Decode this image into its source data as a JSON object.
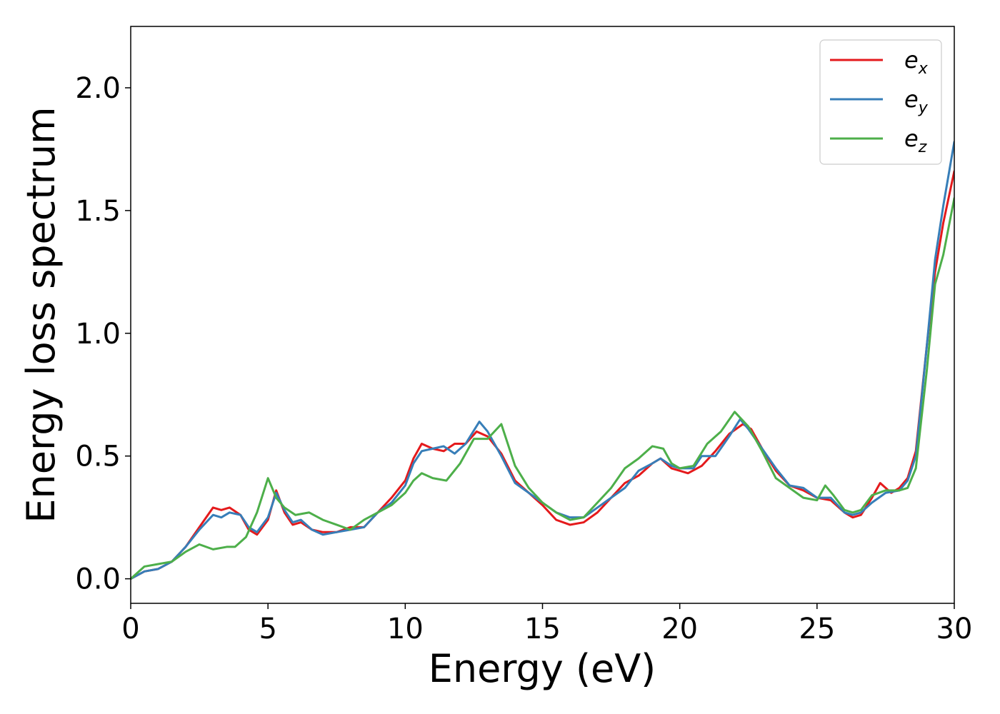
{
  "chart_data": {
    "type": "line",
    "title": "",
    "xlabel": "Energy (eV)",
    "ylabel": "Energy loss spectrum",
    "xlim": [
      0,
      30
    ],
    "ylim": [
      -0.1,
      2.25
    ],
    "x_ticks": [
      0,
      5,
      10,
      15,
      20,
      25,
      30
    ],
    "x_tick_labels": [
      "0",
      "5",
      "10",
      "15",
      "20",
      "25",
      "30"
    ],
    "y_ticks": [
      0.0,
      0.5,
      1.0,
      1.5,
      2.0
    ],
    "y_tick_labels": [
      "0.0",
      "0.5",
      "1.0",
      "1.5",
      "2.0"
    ],
    "grid": false,
    "legend_position": "top-right",
    "series": [
      {
        "name": "e_x",
        "legend_base": "e",
        "legend_sub": "x",
        "color": "#e41a1c",
        "points": [
          [
            0.0,
            0.0
          ],
          [
            0.5,
            0.03
          ],
          [
            1.0,
            0.04
          ],
          [
            1.5,
            0.07
          ],
          [
            2.0,
            0.13
          ],
          [
            2.5,
            0.21
          ],
          [
            3.0,
            0.29
          ],
          [
            3.3,
            0.28
          ],
          [
            3.6,
            0.29
          ],
          [
            4.0,
            0.26
          ],
          [
            4.3,
            0.2
          ],
          [
            4.6,
            0.18
          ],
          [
            5.0,
            0.24
          ],
          [
            5.3,
            0.36
          ],
          [
            5.6,
            0.27
          ],
          [
            5.9,
            0.22
          ],
          [
            6.2,
            0.23
          ],
          [
            6.6,
            0.2
          ],
          [
            7.0,
            0.19
          ],
          [
            7.5,
            0.19
          ],
          [
            8.0,
            0.21
          ],
          [
            8.5,
            0.21
          ],
          [
            9.0,
            0.27
          ],
          [
            9.5,
            0.33
          ],
          [
            10.0,
            0.4
          ],
          [
            10.3,
            0.49
          ],
          [
            10.6,
            0.55
          ],
          [
            11.0,
            0.53
          ],
          [
            11.4,
            0.52
          ],
          [
            11.8,
            0.55
          ],
          [
            12.2,
            0.55
          ],
          [
            12.6,
            0.6
          ],
          [
            13.0,
            0.58
          ],
          [
            13.5,
            0.51
          ],
          [
            14.0,
            0.4
          ],
          [
            14.5,
            0.35
          ],
          [
            15.0,
            0.3
          ],
          [
            15.5,
            0.24
          ],
          [
            16.0,
            0.22
          ],
          [
            16.5,
            0.23
          ],
          [
            17.0,
            0.27
          ],
          [
            17.5,
            0.33
          ],
          [
            18.0,
            0.39
          ],
          [
            18.5,
            0.42
          ],
          [
            19.0,
            0.47
          ],
          [
            19.3,
            0.49
          ],
          [
            19.7,
            0.45
          ],
          [
            20.0,
            0.44
          ],
          [
            20.3,
            0.43
          ],
          [
            20.8,
            0.46
          ],
          [
            21.3,
            0.52
          ],
          [
            21.8,
            0.59
          ],
          [
            22.3,
            0.63
          ],
          [
            22.6,
            0.61
          ],
          [
            23.0,
            0.53
          ],
          [
            23.5,
            0.44
          ],
          [
            24.0,
            0.38
          ],
          [
            24.5,
            0.36
          ],
          [
            25.0,
            0.33
          ],
          [
            25.5,
            0.32
          ],
          [
            26.0,
            0.27
          ],
          [
            26.3,
            0.25
          ],
          [
            26.6,
            0.26
          ],
          [
            27.0,
            0.33
          ],
          [
            27.3,
            0.39
          ],
          [
            27.7,
            0.35
          ],
          [
            28.0,
            0.37
          ],
          [
            28.3,
            0.41
          ],
          [
            28.6,
            0.52
          ],
          [
            29.0,
            0.95
          ],
          [
            29.3,
            1.25
          ],
          [
            29.6,
            1.45
          ],
          [
            30.0,
            1.66
          ]
        ]
      },
      {
        "name": "e_y",
        "legend_base": "e",
        "legend_sub": "y",
        "color": "#377eb8",
        "points": [
          [
            0.0,
            0.0
          ],
          [
            0.5,
            0.03
          ],
          [
            1.0,
            0.04
          ],
          [
            1.5,
            0.07
          ],
          [
            2.0,
            0.13
          ],
          [
            2.5,
            0.2
          ],
          [
            3.0,
            0.26
          ],
          [
            3.3,
            0.25
          ],
          [
            3.6,
            0.27
          ],
          [
            4.0,
            0.26
          ],
          [
            4.3,
            0.21
          ],
          [
            4.6,
            0.19
          ],
          [
            5.0,
            0.25
          ],
          [
            5.3,
            0.35
          ],
          [
            5.6,
            0.28
          ],
          [
            5.9,
            0.23
          ],
          [
            6.2,
            0.24
          ],
          [
            6.6,
            0.2
          ],
          [
            7.0,
            0.18
          ],
          [
            7.5,
            0.19
          ],
          [
            8.0,
            0.2
          ],
          [
            8.5,
            0.21
          ],
          [
            9.0,
            0.27
          ],
          [
            9.5,
            0.31
          ],
          [
            10.0,
            0.38
          ],
          [
            10.3,
            0.47
          ],
          [
            10.6,
            0.52
          ],
          [
            11.0,
            0.53
          ],
          [
            11.4,
            0.54
          ],
          [
            11.8,
            0.51
          ],
          [
            12.2,
            0.55
          ],
          [
            12.7,
            0.64
          ],
          [
            13.0,
            0.6
          ],
          [
            13.5,
            0.5
          ],
          [
            14.0,
            0.39
          ],
          [
            14.5,
            0.35
          ],
          [
            15.0,
            0.31
          ],
          [
            15.5,
            0.27
          ],
          [
            16.0,
            0.25
          ],
          [
            16.5,
            0.25
          ],
          [
            17.0,
            0.29
          ],
          [
            17.5,
            0.33
          ],
          [
            18.0,
            0.37
          ],
          [
            18.5,
            0.44
          ],
          [
            19.0,
            0.47
          ],
          [
            19.3,
            0.49
          ],
          [
            19.7,
            0.46
          ],
          [
            20.0,
            0.45
          ],
          [
            20.5,
            0.45
          ],
          [
            20.8,
            0.5
          ],
          [
            21.3,
            0.5
          ],
          [
            21.8,
            0.58
          ],
          [
            22.2,
            0.65
          ],
          [
            22.5,
            0.61
          ],
          [
            23.0,
            0.53
          ],
          [
            23.5,
            0.45
          ],
          [
            24.0,
            0.38
          ],
          [
            24.5,
            0.37
          ],
          [
            25.0,
            0.33
          ],
          [
            25.5,
            0.33
          ],
          [
            26.0,
            0.27
          ],
          [
            26.3,
            0.26
          ],
          [
            26.6,
            0.27
          ],
          [
            27.0,
            0.31
          ],
          [
            27.5,
            0.35
          ],
          [
            28.0,
            0.36
          ],
          [
            28.3,
            0.4
          ],
          [
            28.6,
            0.5
          ],
          [
            29.0,
            0.95
          ],
          [
            29.3,
            1.3
          ],
          [
            29.6,
            1.52
          ],
          [
            30.0,
            1.78
          ]
        ]
      },
      {
        "name": "e_z",
        "legend_base": "e",
        "legend_sub": "z",
        "color": "#4daf4a",
        "points": [
          [
            0.0,
            0.0
          ],
          [
            0.5,
            0.05
          ],
          [
            1.0,
            0.06
          ],
          [
            1.5,
            0.07
          ],
          [
            2.0,
            0.11
          ],
          [
            2.5,
            0.14
          ],
          [
            3.0,
            0.12
          ],
          [
            3.5,
            0.13
          ],
          [
            3.8,
            0.13
          ],
          [
            4.2,
            0.17
          ],
          [
            4.6,
            0.27
          ],
          [
            5.0,
            0.41
          ],
          [
            5.3,
            0.33
          ],
          [
            5.6,
            0.29
          ],
          [
            6.0,
            0.26
          ],
          [
            6.5,
            0.27
          ],
          [
            7.0,
            0.24
          ],
          [
            7.5,
            0.22
          ],
          [
            8.0,
            0.2
          ],
          [
            8.5,
            0.24
          ],
          [
            9.0,
            0.27
          ],
          [
            9.5,
            0.3
          ],
          [
            10.0,
            0.35
          ],
          [
            10.3,
            0.4
          ],
          [
            10.6,
            0.43
          ],
          [
            11.0,
            0.41
          ],
          [
            11.5,
            0.4
          ],
          [
            12.0,
            0.47
          ],
          [
            12.5,
            0.57
          ],
          [
            13.0,
            0.57
          ],
          [
            13.5,
            0.63
          ],
          [
            14.0,
            0.46
          ],
          [
            14.5,
            0.37
          ],
          [
            15.0,
            0.31
          ],
          [
            15.5,
            0.27
          ],
          [
            16.0,
            0.24
          ],
          [
            16.5,
            0.25
          ],
          [
            17.0,
            0.31
          ],
          [
            17.5,
            0.37
          ],
          [
            18.0,
            0.45
          ],
          [
            18.5,
            0.49
          ],
          [
            19.0,
            0.54
          ],
          [
            19.4,
            0.53
          ],
          [
            19.7,
            0.47
          ],
          [
            20.0,
            0.45
          ],
          [
            20.5,
            0.46
          ],
          [
            21.0,
            0.55
          ],
          [
            21.5,
            0.6
          ],
          [
            22.0,
            0.68
          ],
          [
            22.5,
            0.62
          ],
          [
            23.0,
            0.52
          ],
          [
            23.5,
            0.41
          ],
          [
            24.0,
            0.37
          ],
          [
            24.5,
            0.33
          ],
          [
            25.0,
            0.32
          ],
          [
            25.3,
            0.38
          ],
          [
            25.6,
            0.34
          ],
          [
            26.0,
            0.28
          ],
          [
            26.3,
            0.27
          ],
          [
            26.6,
            0.28
          ],
          [
            27.0,
            0.34
          ],
          [
            27.5,
            0.36
          ],
          [
            28.0,
            0.36
          ],
          [
            28.3,
            0.37
          ],
          [
            28.6,
            0.45
          ],
          [
            29.0,
            0.85
          ],
          [
            29.3,
            1.2
          ],
          [
            29.6,
            1.32
          ],
          [
            30.0,
            1.55
          ]
        ]
      }
    ]
  }
}
